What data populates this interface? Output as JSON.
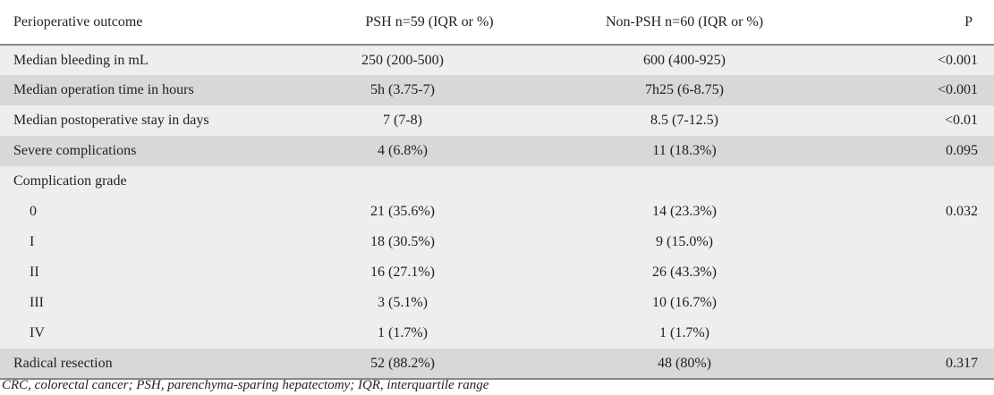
{
  "header": {
    "outcome": "Perioperative outcome",
    "psh": "PSH n=59 (IQR or %)",
    "nonpsh": "Non-PSH n=60 (IQR or %)",
    "p": "P"
  },
  "rows": [
    {
      "label": "Median bleeding in mL",
      "psh": "250 (200-500)",
      "nonpsh": "600 (400-925)",
      "p": "<0.001"
    },
    {
      "label": "Median operation time in hours",
      "psh": "5h (3.75-7)",
      "nonpsh": "7h25 (6-8.75)",
      "p": "<0.001"
    },
    {
      "label": "Median postoperative stay in days",
      "psh": "7 (7-8)",
      "nonpsh": "8.5 (7-12.5)",
      "p": "<0.01"
    },
    {
      "label": "Severe complications",
      "psh": "4 (6.8%)",
      "nonpsh": "11 (18.3%)",
      "p": "0.095"
    },
    {
      "label": "Complication grade",
      "psh": "",
      "nonpsh": "",
      "p": ""
    },
    {
      "label": "0",
      "psh": "21 (35.6%)",
      "nonpsh": "14 (23.3%)",
      "p": "0.032"
    },
    {
      "label": "I",
      "psh": "18 (30.5%)",
      "nonpsh": "9 (15.0%)",
      "p": ""
    },
    {
      "label": "II",
      "psh": "16 (27.1%)",
      "nonpsh": "26 (43.3%)",
      "p": ""
    },
    {
      "label": "III",
      "psh": "3 (5.1%)",
      "nonpsh": "10 (16.7%)",
      "p": ""
    },
    {
      "label": "IV",
      "psh": "1 (1.7%)",
      "nonpsh": "1 (1.7%)",
      "p": ""
    },
    {
      "label": "Radical resection",
      "psh": "52 (88.2%)",
      "nonpsh": "48 (80%)",
      "p": "0.317"
    }
  ],
  "footnote": "CRC, colorectal cancer; PSH, parenchyma-sparing hepatectomy; IQR, interquartile range"
}
